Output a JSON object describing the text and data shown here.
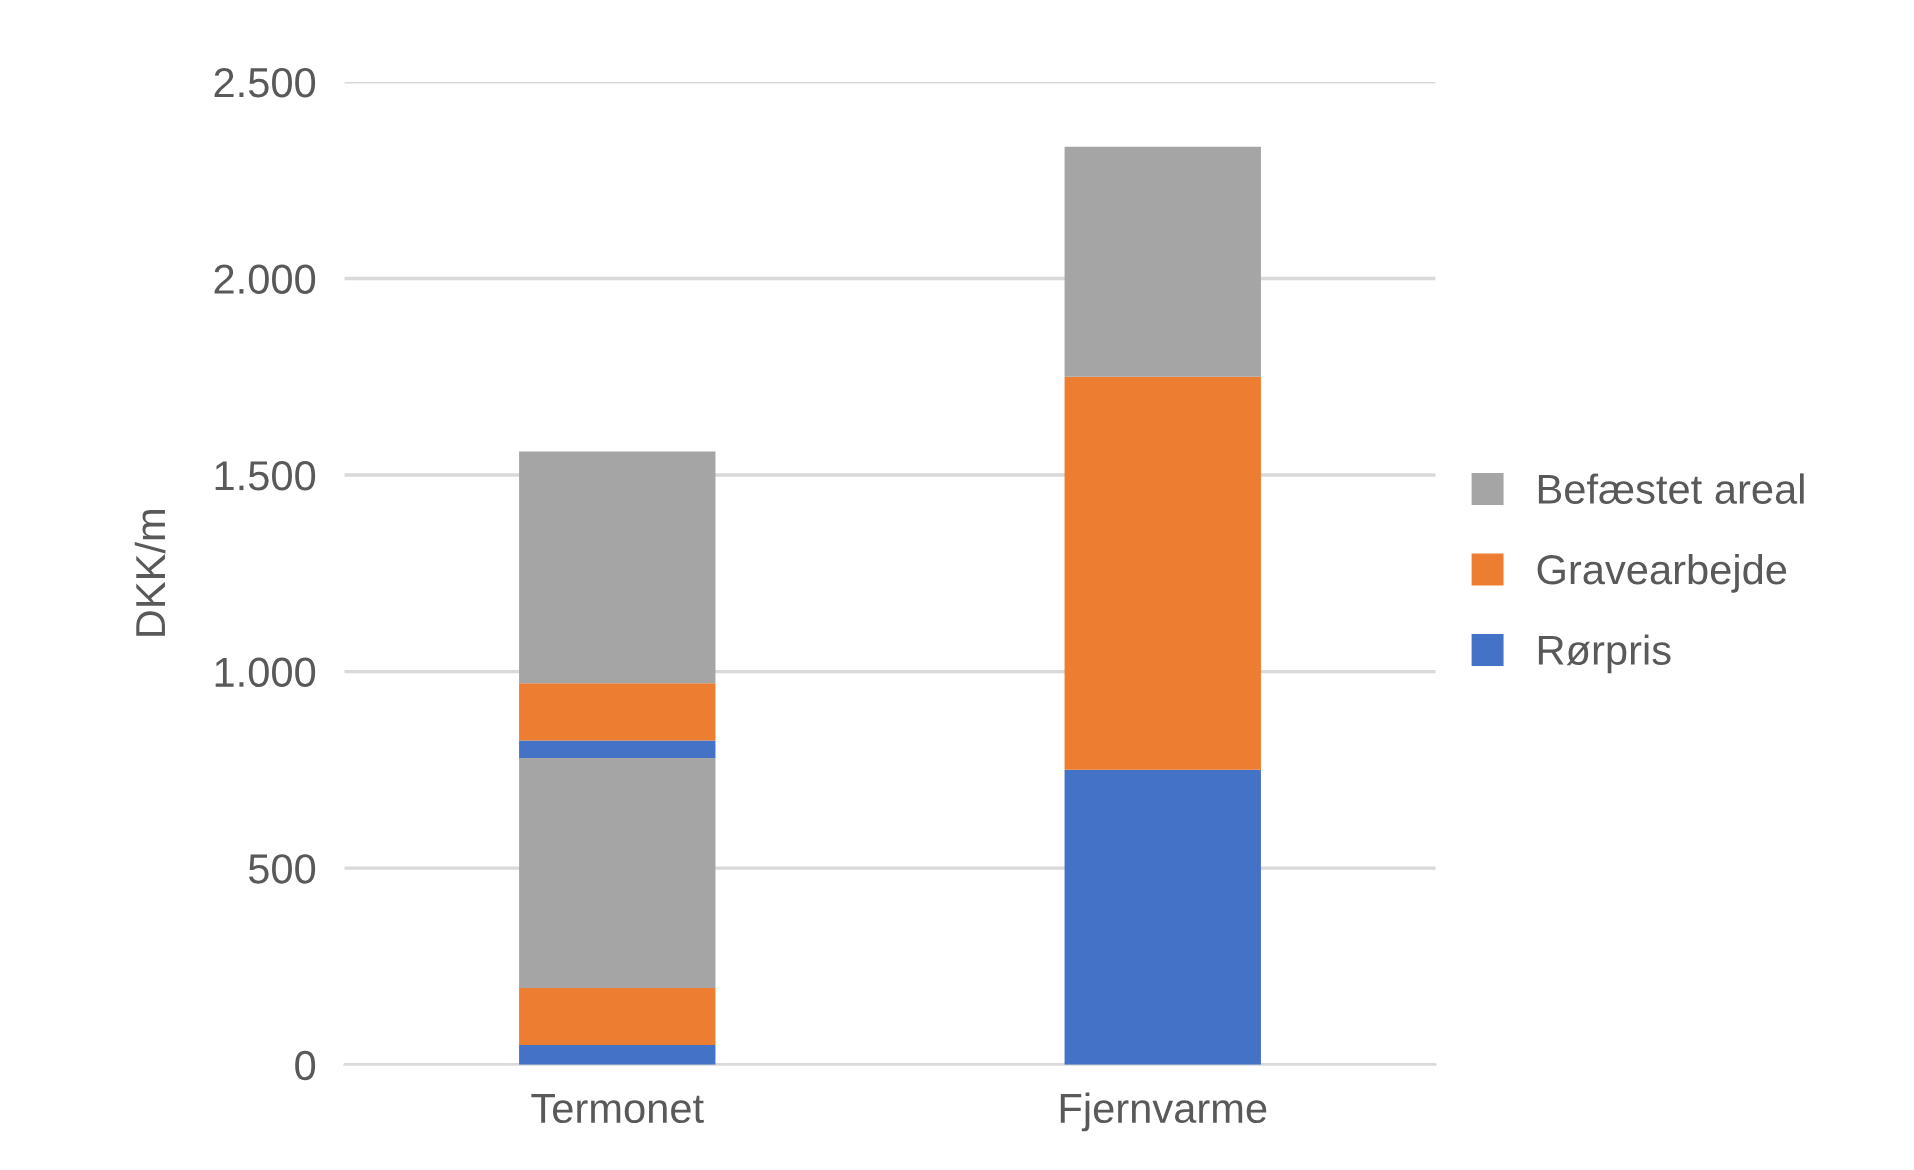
{
  "chart_data": {
    "type": "bar",
    "stacked": true,
    "ylabel": "DKK/m",
    "categories": [
      "Termonet",
      "Fjernvarme"
    ],
    "series": [
      {
        "name": "Rørpris",
        "color": "#4472c4",
        "values": [
          50,
          750
        ]
      },
      {
        "name": "Gravearbejde",
        "color": "#ed7d31",
        "values": [
          145,
          1000
        ]
      },
      {
        "name": "Befæstet areal",
        "color": "#a5a5a5",
        "values": [
          585,
          585
        ]
      },
      {
        "color": "#4472c4",
        "values": [
          45,
          null
        ]
      },
      {
        "color": "#ed7d31",
        "values": [
          145,
          null
        ]
      },
      {
        "color": "#a5a5a5",
        "values": [
          590,
          null
        ]
      }
    ],
    "ylim": [
      0,
      2500
    ],
    "yticks": [
      {
        "value": 0,
        "label": "0"
      },
      {
        "value": 500,
        "label": "500"
      },
      {
        "value": 1000,
        "label": "1.000"
      },
      {
        "value": 1500,
        "label": "1.500"
      },
      {
        "value": 2000,
        "label": "2.000"
      },
      {
        "value": 2500,
        "label": "2.500"
      }
    ],
    "grid": "y",
    "legend": "right"
  }
}
